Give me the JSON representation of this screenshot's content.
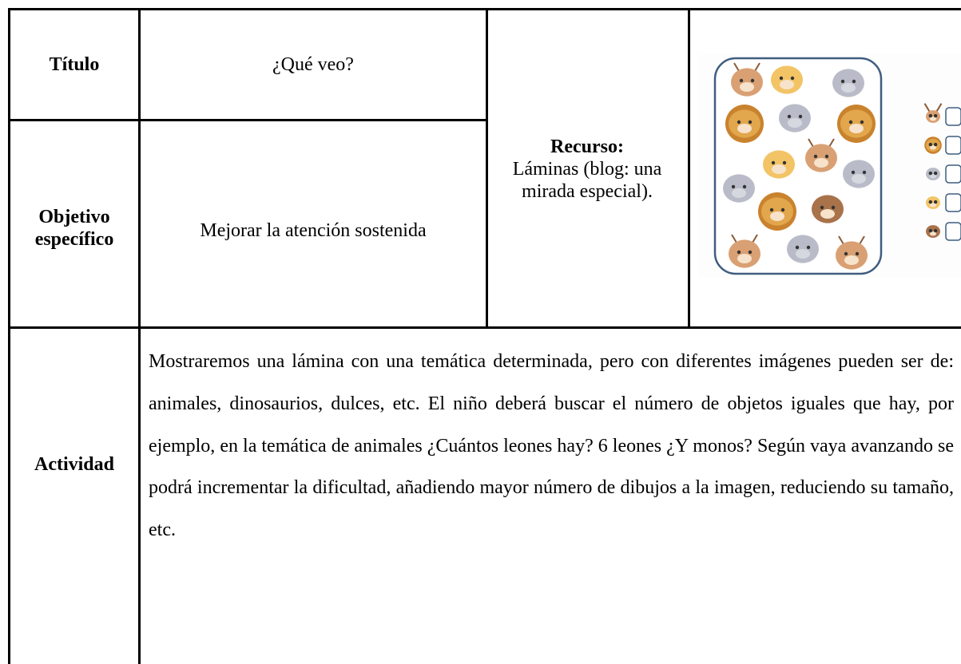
{
  "titulo": {
    "label": "Título",
    "value": "¿Qué veo?"
  },
  "objetivo": {
    "label": "Objetivo específico",
    "value": "Mejorar la atención sostenida"
  },
  "recurso": {
    "label": "Recurso:",
    "value": "Láminas (blog: una mirada especial)."
  },
  "actividad": {
    "label": "Actividad",
    "value": "Mostraremos una lámina con una temática determinada, pero con diferentes imágenes pueden ser de: animales, dinosaurios, dulces, etc. El niño deberá buscar el número de objetos iguales que hay, por ejemplo, en la temática de animales ¿Cuántos leones hay? 6 leones ¿Y monos? Según vaya avanzando se podrá incrementar la dificultad, añadiendo mayor número de dibujos a la imagen, reduciendo su tamaño, etc."
  }
}
